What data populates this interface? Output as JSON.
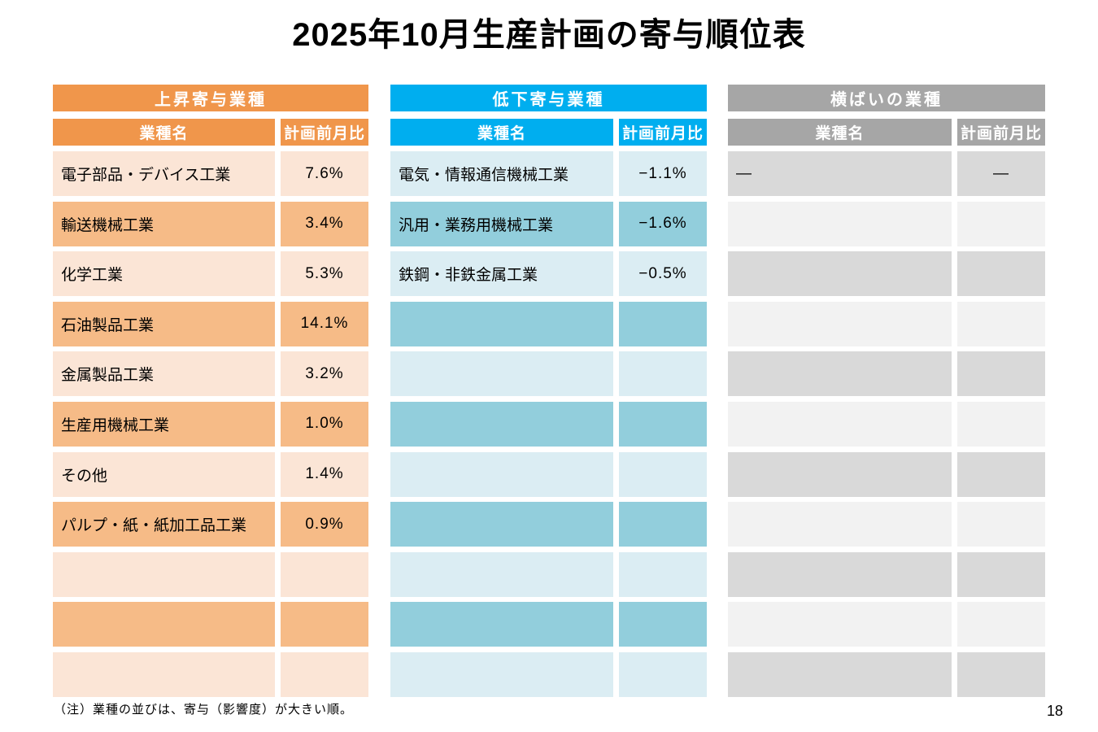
{
  "page": {
    "title": "2025年10月生産計画の寄与順位表",
    "note": "（注）業種の並びは、寄与（影響度）が大きい順。",
    "page_number": "18"
  },
  "columns": {
    "name_label": "業種名",
    "value_label": "計画前月比"
  },
  "tables": [
    {
      "title": "上昇寄与業種",
      "colors": {
        "header": "#F0964B",
        "row_light": "#FBE5D6",
        "row_dark": "#F6BB87"
      },
      "row_colors": [
        "#FBE5D6",
        "#F6BB87"
      ],
      "rows": [
        {
          "name": "電子部品・デバイス工業",
          "value": "7.6%"
        },
        {
          "name": "輸送機械工業",
          "value": "3.4%"
        },
        {
          "name": "化学工業",
          "value": "5.3%"
        },
        {
          "name": "石油製品工業",
          "value": "14.1%"
        },
        {
          "name": "金属製品工業",
          "value": "3.2%"
        },
        {
          "name": "生産用機械工業",
          "value": "1.0%"
        },
        {
          "name": "その他",
          "value": "1.4%"
        },
        {
          "name": "パルプ・紙・紙加工品工業",
          "value": "0.9%"
        },
        {
          "name": "",
          "value": ""
        },
        {
          "name": "",
          "value": ""
        },
        {
          "name": "",
          "value": ""
        }
      ]
    },
    {
      "title": "低下寄与業種",
      "colors": {
        "header": "#00AEEF",
        "row_light": "#DBEDF3",
        "row_dark": "#92CEDC"
      },
      "row_colors": [
        "#DBEDF3",
        "#92CEDC"
      ],
      "rows": [
        {
          "name": "電気・情報通信機械工業",
          "value": "−1.1%"
        },
        {
          "name": "汎用・業務用機械工業",
          "value": "−1.6%"
        },
        {
          "name": "鉄鋼・非鉄金属工業",
          "value": "−0.5%"
        },
        {
          "name": "",
          "value": ""
        },
        {
          "name": "",
          "value": ""
        },
        {
          "name": "",
          "value": ""
        },
        {
          "name": "",
          "value": ""
        },
        {
          "name": "",
          "value": ""
        },
        {
          "name": "",
          "value": ""
        },
        {
          "name": "",
          "value": ""
        },
        {
          "name": "",
          "value": ""
        }
      ]
    },
    {
      "title": "横ばいの業種",
      "colors": {
        "header": "#A6A6A6",
        "row_light": "#F2F2F2",
        "row_dark": "#D9D9D9"
      },
      "row_colors": [
        "#D9D9D9",
        "#F2F2F2"
      ],
      "rows": [
        {
          "name": "―",
          "value": "―"
        },
        {
          "name": "",
          "value": ""
        },
        {
          "name": "",
          "value": ""
        },
        {
          "name": "",
          "value": ""
        },
        {
          "name": "",
          "value": ""
        },
        {
          "name": "",
          "value": ""
        },
        {
          "name": "",
          "value": ""
        },
        {
          "name": "",
          "value": ""
        },
        {
          "name": "",
          "value": ""
        },
        {
          "name": "",
          "value": ""
        },
        {
          "name": "",
          "value": ""
        }
      ]
    }
  ]
}
